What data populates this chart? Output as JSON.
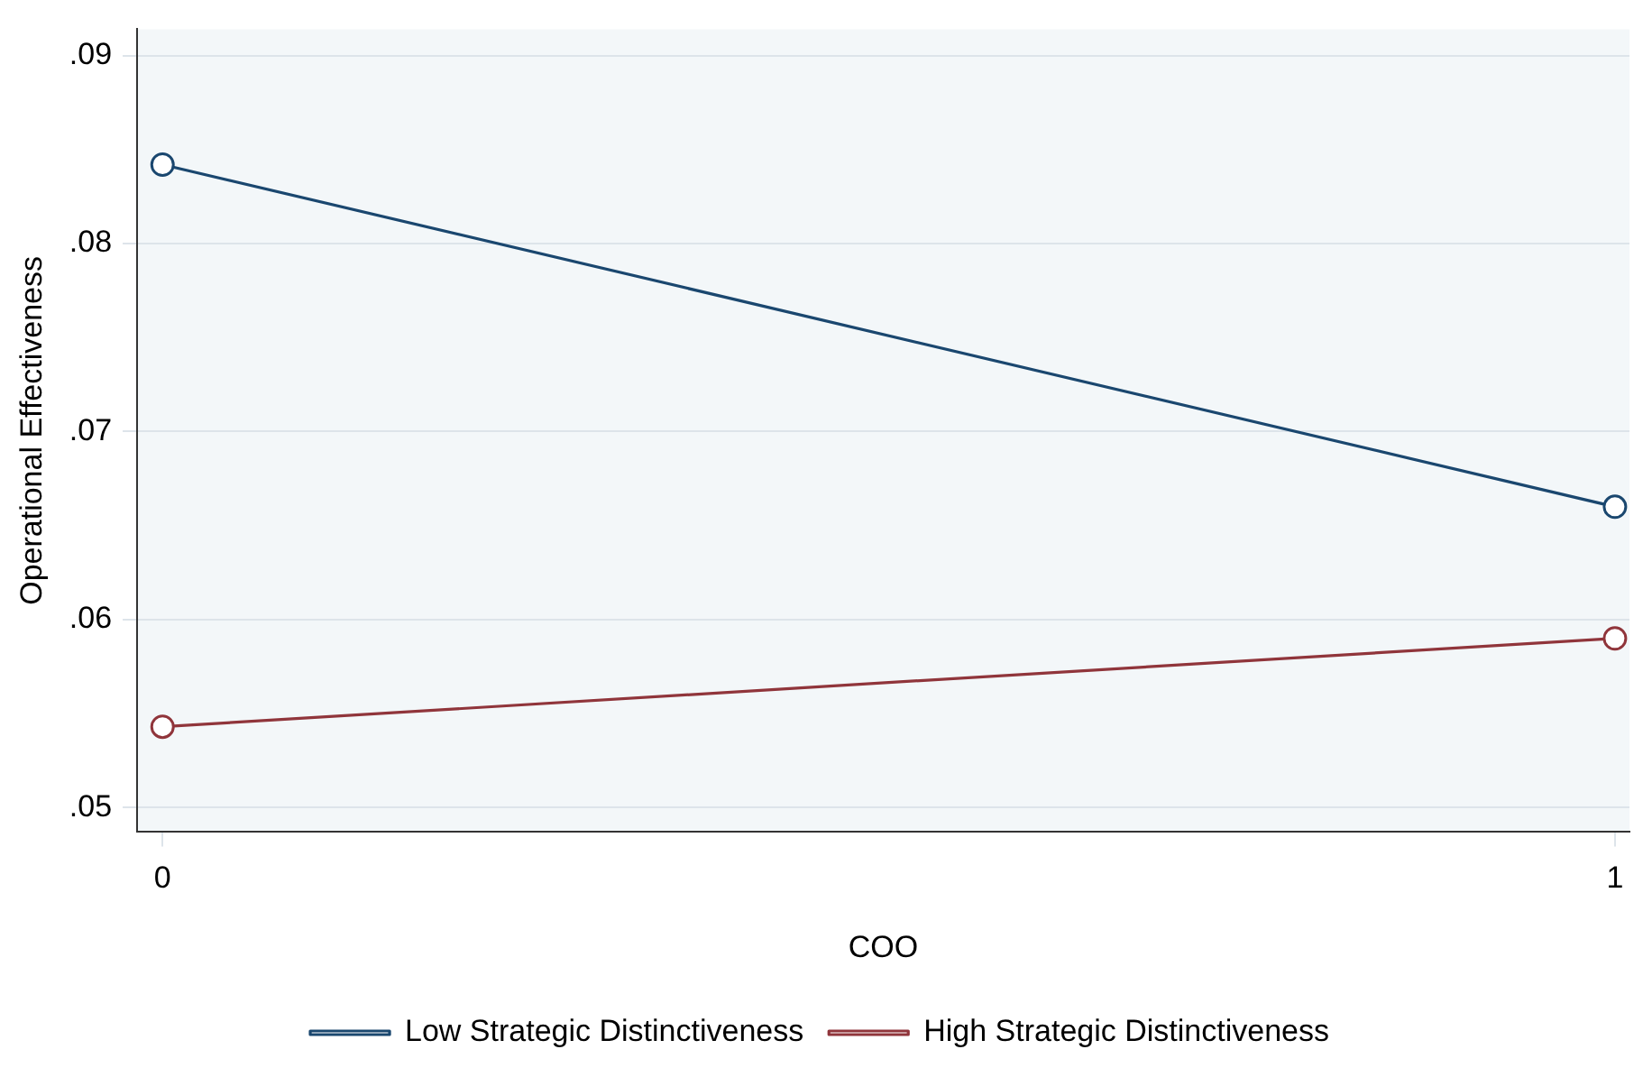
{
  "chart_data": {
    "type": "line",
    "xlabel": "COO",
    "ylabel": "Operational Effectiveness",
    "x": [
      0,
      1
    ],
    "series": [
      {
        "name": "Low Strategic Distinctiveness",
        "color": "#1a476f",
        "values": [
          0.0842,
          0.066
        ]
      },
      {
        "name": "High Strategic Distinctiveness",
        "color": "#90353b",
        "values": [
          0.0543,
          0.059
        ]
      }
    ],
    "xlim": [
      -0.0175,
      1.01
    ],
    "xticks": [
      0,
      1
    ],
    "ylim": [
      0.0487,
      0.0914
    ],
    "yticks": [
      {
        "value": 0.05,
        "label": ".05"
      },
      {
        "value": 0.06,
        "label": ".06"
      },
      {
        "value": 0.07,
        "label": ".07"
      },
      {
        "value": 0.08,
        "label": ".08"
      },
      {
        "value": 0.09,
        "label": ".09"
      }
    ],
    "grid": "y",
    "legend": "bottom",
    "marker": "circle",
    "line_style": "solid"
  }
}
